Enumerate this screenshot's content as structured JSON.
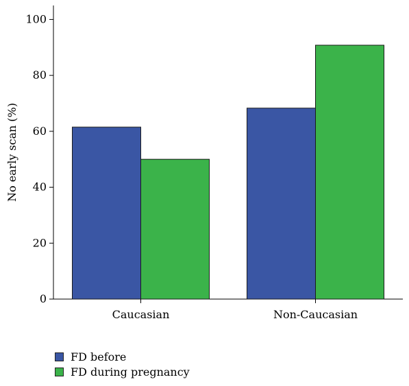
{
  "chart_data": {
    "type": "bar",
    "title": "",
    "xlabel": "",
    "ylabel": "No early scan (%)",
    "categories": [
      "Caucasian",
      "Non-Caucasian"
    ],
    "series": [
      {
        "name": "FD before",
        "values": [
          61.5,
          68.3
        ],
        "color": "#3a56a4"
      },
      {
        "name": "FD during pregnancy",
        "values": [
          50,
          90.8
        ],
        "color": "#3bb34a"
      }
    ],
    "ylim": [
      0,
      105
    ],
    "yticks": [
      0,
      20,
      40,
      60,
      80,
      100
    ],
    "grid": false,
    "legend_position": "bottom-left"
  }
}
